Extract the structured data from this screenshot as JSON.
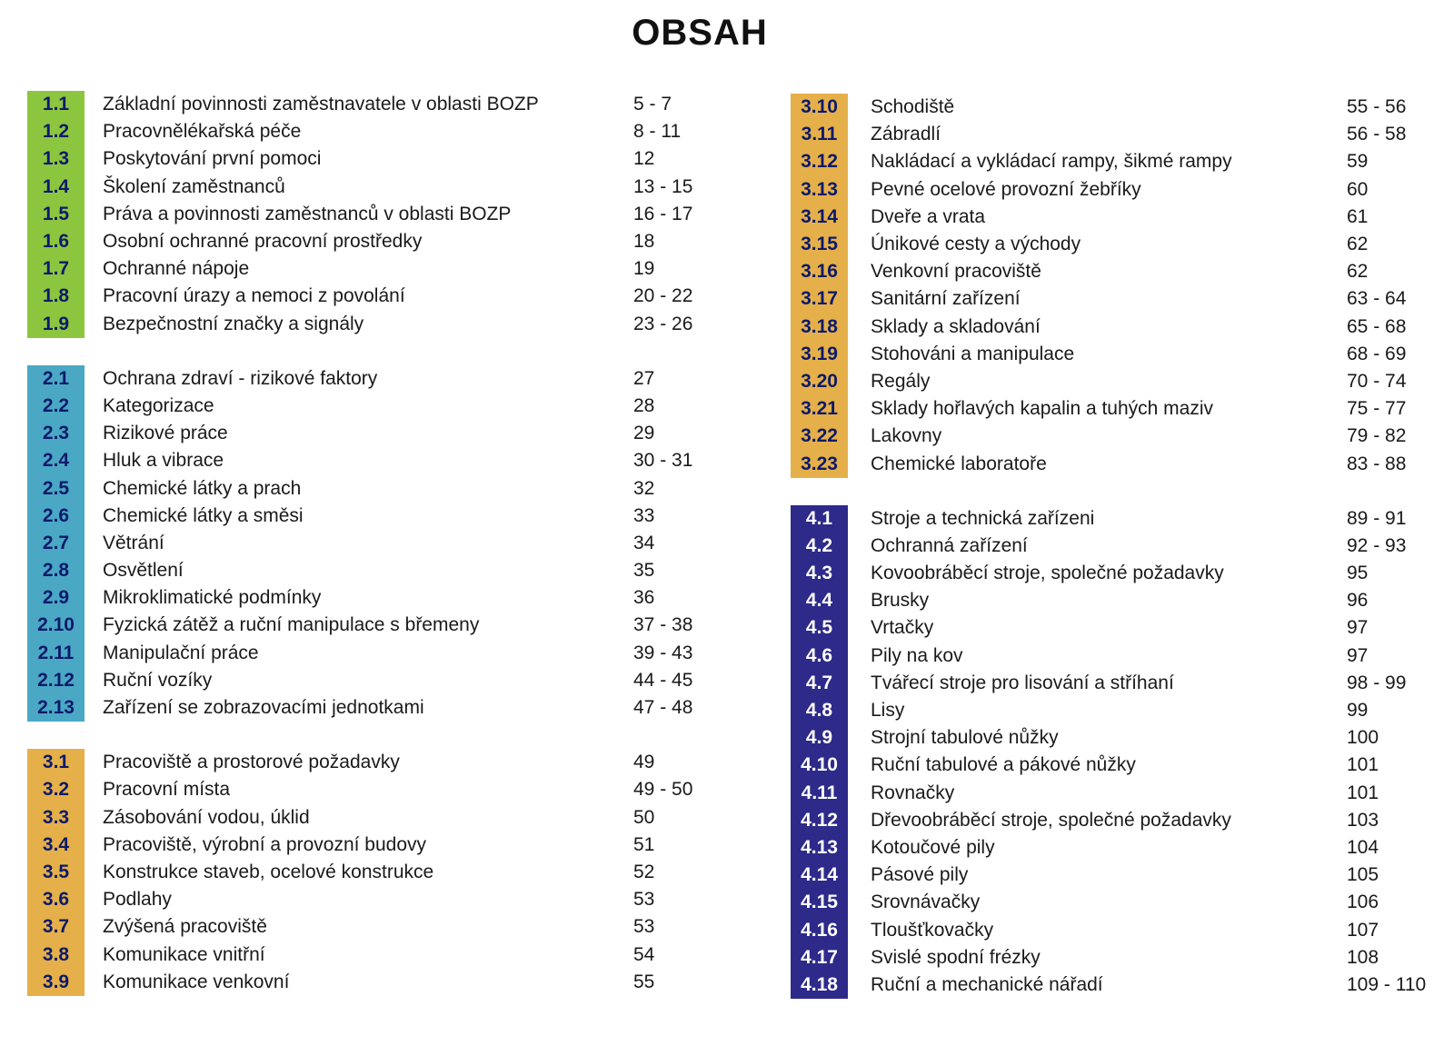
{
  "title": "OBSAH",
  "colors": {
    "s1": "#8cc63f",
    "s2": "#4aa8c4",
    "s3": "#e5b04a",
    "s4": "#2e2a8a"
  },
  "left_sections": [
    {
      "color": "s1",
      "items": [
        {
          "num": "1.1",
          "label": "Základní povinnosti zaměstnavatele v oblasti BOZP",
          "pages": "5 - 7"
        },
        {
          "num": "1.2",
          "label": "Pracovnělékařská péče",
          "pages": "8 - 11"
        },
        {
          "num": "1.3",
          "label": "Poskytování první pomoci",
          "pages": "12"
        },
        {
          "num": "1.4",
          "label": "Školení zaměstnanců",
          "pages": "13 - 15"
        },
        {
          "num": "1.5",
          "label": "Práva a povinnosti zaměstnanců v oblasti BOZP",
          "pages": "16 - 17"
        },
        {
          "num": "1.6",
          "label": "Osobní ochranné pracovní prostředky",
          "pages": "18"
        },
        {
          "num": "1.7",
          "label": "Ochranné nápoje",
          "pages": "19"
        },
        {
          "num": "1.8",
          "label": "Pracovní úrazy a nemoci z povolání",
          "pages": "20 - 22"
        },
        {
          "num": "1.9",
          "label": "Bezpečnostní značky a signály",
          "pages": "23 - 26"
        }
      ]
    },
    {
      "color": "s2",
      "items": [
        {
          "num": "2.1",
          "label": "Ochrana zdraví - rizikové faktory",
          "pages": "27"
        },
        {
          "num": "2.2",
          "label": "Kategorizace",
          "pages": "28"
        },
        {
          "num": "2.3",
          "label": "Rizikové práce",
          "pages": "29"
        },
        {
          "num": "2.4",
          "label": "Hluk a vibrace",
          "pages": "30 - 31"
        },
        {
          "num": "2.5",
          "label": "Chemické látky a prach",
          "pages": "32"
        },
        {
          "num": "2.6",
          "label": "Chemické látky a směsi",
          "pages": "33"
        },
        {
          "num": "2.7",
          "label": "Větrání",
          "pages": "34"
        },
        {
          "num": "2.8",
          "label": "Osvětlení",
          "pages": "35"
        },
        {
          "num": "2.9",
          "label": "Mikroklimatické podmínky",
          "pages": "36"
        },
        {
          "num": "2.10",
          "label": "Fyzická zátěž a ruční manipulace s břemeny",
          "pages": "37 - 38"
        },
        {
          "num": "2.11",
          "label": "Manipulační práce",
          "pages": "39 - 43"
        },
        {
          "num": "2.12",
          "label": "Ruční vozíky",
          "pages": "44 - 45"
        },
        {
          "num": "2.13",
          "label": "Zařízení se zobrazovacími jednotkami",
          "pages": "47 - 48"
        }
      ]
    },
    {
      "color": "s3",
      "items": [
        {
          "num": "3.1",
          "label": "Pracoviště a prostorové požadavky",
          "pages": "49"
        },
        {
          "num": "3.2",
          "label": "Pracovní místa",
          "pages": "49 - 50"
        },
        {
          "num": "3.3",
          "label": "Zásobování vodou, úklid",
          "pages": "50"
        },
        {
          "num": "3.4",
          "label": "Pracoviště, výrobní a provozní budovy",
          "pages": "51"
        },
        {
          "num": "3.5",
          "label": "Konstrukce staveb, ocelové konstrukce",
          "pages": "52"
        },
        {
          "num": "3.6",
          "label": "Podlahy",
          "pages": "53"
        },
        {
          "num": "3.7",
          "label": "Zvýšená pracoviště",
          "pages": "53"
        },
        {
          "num": "3.8",
          "label": "Komunikace vnitřní",
          "pages": "54"
        },
        {
          "num": "3.9",
          "label": "Komunikace venkovní",
          "pages": "55"
        }
      ]
    }
  ],
  "right_sections": [
    {
      "color": "s3",
      "items": [
        {
          "num": "3.10",
          "label": "Schodiště",
          "pages": "55 - 56"
        },
        {
          "num": "3.11",
          "label": "Zábradlí",
          "pages": "56 - 58"
        },
        {
          "num": "3.12",
          "label": "Nakládací a vykládací rampy, šikmé rampy",
          "pages": "59"
        },
        {
          "num": "3.13",
          "label": "Pevné ocelové provozní žebříky",
          "pages": "60"
        },
        {
          "num": "3.14",
          "label": "Dveře a vrata",
          "pages": "61"
        },
        {
          "num": "3.15",
          "label": "Únikové cesty a východy",
          "pages": "62"
        },
        {
          "num": "3.16",
          "label": "Venkovní pracoviště",
          "pages": "62"
        },
        {
          "num": "3.17",
          "label": "Sanitární zařízení",
          "pages": "63 - 64"
        },
        {
          "num": "3.18",
          "label": "Sklady a skladování",
          "pages": "65 - 68"
        },
        {
          "num": "3.19",
          "label": "Stohováni a manipulace",
          "pages": "68 - 69"
        },
        {
          "num": "3.20",
          "label": "Regály",
          "pages": "70 - 74"
        },
        {
          "num": "3.21",
          "label": "Sklady hořlavých kapalin a tuhých maziv",
          "pages": "75 - 77"
        },
        {
          "num": "3.22",
          "label": "Lakovny",
          "pages": "79 - 82"
        },
        {
          "num": "3.23",
          "label": "Chemické laboratoře",
          "pages": "83 - 88"
        }
      ]
    },
    {
      "color": "s4",
      "items": [
        {
          "num": "4.1",
          "label": "Stroje a technická zařízeni",
          "pages": "89 - 91"
        },
        {
          "num": "4.2",
          "label": "Ochranná zařízení",
          "pages": "92 - 93"
        },
        {
          "num": "4.3",
          "label": "Kovoobráběcí stroje, společné požadavky",
          "pages": "95"
        },
        {
          "num": "4.4",
          "label": "Brusky",
          "pages": "96"
        },
        {
          "num": "4.5",
          "label": "Vrtačky",
          "pages": "97"
        },
        {
          "num": "4.6",
          "label": "Pily na kov",
          "pages": "97"
        },
        {
          "num": "4.7",
          "label": "Tvářecí stroje pro lisování a stříhaní",
          "pages": "98 - 99"
        },
        {
          "num": "4.8",
          "label": "Lisy",
          "pages": "99"
        },
        {
          "num": "4.9",
          "label": "Strojní tabulové nůžky",
          "pages": "100"
        },
        {
          "num": "4.10",
          "label": "Ruční tabulové a pákové nůžky",
          "pages": "101"
        },
        {
          "num": "4.11",
          "label": "Rovnačky",
          "pages": "101"
        },
        {
          "num": "4.12",
          "label": "Dřevoobráběcí stroje, společné požadavky",
          "pages": "103"
        },
        {
          "num": "4.13",
          "label": "Kotoučové pily",
          "pages": "104"
        },
        {
          "num": "4.14",
          "label": "Pásové pily",
          "pages": "105"
        },
        {
          "num": "4.15",
          "label": "Srovnávačky",
          "pages": "106"
        },
        {
          "num": "4.16",
          "label": "Tloušťkovačky",
          "pages": "107"
        },
        {
          "num": "4.17",
          "label": "Svislé spodní frézky",
          "pages": "108"
        },
        {
          "num": "4.18",
          "label": "Ruční a mechanické nářadí",
          "pages": "109 - 110"
        }
      ]
    }
  ]
}
